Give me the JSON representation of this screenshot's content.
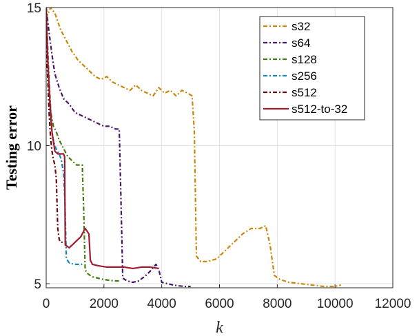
{
  "chart_data": {
    "type": "line",
    "title": "",
    "xlabel": "k",
    "ylabel": "Testing error",
    "xlim": [
      0,
      12000
    ],
    "ylim": [
      4.85,
      15
    ],
    "xticks": [
      0,
      2000,
      4000,
      6000,
      8000,
      10000,
      12000
    ],
    "xtick_labels": [
      "0",
      "2000",
      "4000",
      "6000",
      "8000",
      "10000",
      "12000"
    ],
    "yticks": [
      5,
      10,
      15
    ],
    "ytick_labels": [
      "5",
      "10",
      "15"
    ],
    "grid": true,
    "legend_position": "top-right",
    "series": [
      {
        "name": "s32",
        "color": "#c8870a",
        "dash": "6,3,2,3",
        "x": [
          0,
          150,
          300,
          500,
          700,
          900,
          1100,
          1300,
          1500,
          1700,
          1900,
          2100,
          2300,
          2500,
          2700,
          2900,
          3100,
          3300,
          3500,
          3700,
          3900,
          4100,
          4300,
          4500,
          4700,
          4900,
          5050,
          5130,
          5200,
          5350,
          5600,
          5900,
          6200,
          6500,
          6800,
          7100,
          7400,
          7600,
          7750,
          7900,
          8100,
          8400,
          8800,
          9200,
          9600,
          10000,
          10200
        ],
        "y": [
          14.6,
          15,
          14.8,
          14.2,
          13.8,
          13.4,
          13.1,
          12.9,
          12.7,
          12.5,
          12.4,
          12.5,
          12.3,
          12.2,
          12.1,
          12.0,
          12.2,
          12.0,
          11.9,
          11.8,
          12.1,
          11.9,
          12.0,
          11.8,
          12.0,
          11.9,
          11.8,
          10.5,
          6.0,
          5.8,
          5.8,
          5.9,
          6.2,
          6.5,
          6.8,
          7.0,
          7.0,
          7.1,
          6.4,
          5.3,
          5.15,
          5.05,
          5.0,
          4.95,
          4.9,
          4.9,
          4.95
        ]
      },
      {
        "name": "s64",
        "color": "#4a1468",
        "dash": "6,3,2,3",
        "x": [
          0,
          100,
          200,
          300,
          450,
          600,
          800,
          1000,
          1200,
          1400,
          1600,
          1800,
          2000,
          2200,
          2400,
          2530,
          2580,
          2650,
          2800,
          3000,
          3200,
          3400,
          3600,
          3800,
          3900,
          4000,
          4200,
          4400,
          4600,
          4800,
          5000
        ],
        "y": [
          15,
          14.1,
          13.3,
          12.6,
          12.1,
          11.7,
          11.5,
          11.2,
          11.1,
          11.0,
          10.9,
          10.8,
          10.7,
          10.7,
          10.6,
          10.6,
          8.5,
          5.2,
          5.1,
          5.05,
          5.1,
          5.25,
          5.45,
          5.7,
          5.5,
          5.05,
          5.0,
          4.95,
          4.92,
          4.9,
          4.9
        ]
      },
      {
        "name": "s128",
        "color": "#3e7a0c",
        "dash": "6,3,2,3",
        "x": [
          0,
          80,
          160,
          250,
          350,
          450,
          550,
          650,
          750,
          850,
          950,
          1050,
          1150,
          1250,
          1300,
          1350,
          1450,
          1600,
          1800,
          2000,
          2200,
          2400,
          2550
        ],
        "y": [
          15,
          12.8,
          11.2,
          10.7,
          10.5,
          10.2,
          10.0,
          9.8,
          9.6,
          9.5,
          9.4,
          9.3,
          9.3,
          9.3,
          7.6,
          5.5,
          5.35,
          5.25,
          5.2,
          5.15,
          5.12,
          5.1,
          5.1
        ]
      },
      {
        "name": "s256",
        "color": "#1b86b8",
        "dash": "6,3,2,3",
        "x": [
          0,
          80,
          150,
          230,
          300,
          380,
          450,
          520,
          600,
          650,
          700,
          800,
          900,
          1000,
          1100,
          1200,
          1250
        ],
        "y": [
          14.5,
          12.5,
          11.0,
          10.3,
          10.0,
          9.8,
          9.7,
          9.5,
          9.0,
          8.0,
          5.9,
          5.75,
          5.72,
          5.7,
          5.7,
          5.7,
          5.7
        ]
      },
      {
        "name": "s512",
        "color": "#6a0a0a",
        "dash": "6,3,2,3",
        "x": [
          0,
          50,
          100,
          150,
          200,
          250,
          300,
          350,
          400,
          450,
          500,
          550,
          600,
          640
        ],
        "y": [
          14.0,
          12.5,
          11.2,
          10.3,
          9.8,
          9.5,
          9.3,
          8.8,
          7.0,
          6.6,
          6.5,
          6.5,
          6.5,
          6.5
        ]
      },
      {
        "name": "s512-to-32",
        "color": "#a01a30",
        "dash": "",
        "x": [
          0,
          60,
          120,
          200,
          300,
          400,
          500,
          600,
          640,
          660,
          800,
          1000,
          1200,
          1350,
          1480,
          1530,
          1600,
          1800,
          2100,
          2400,
          2700,
          3000,
          3300,
          3600,
          3900
        ],
        "y": [
          15,
          13.0,
          11.8,
          10.5,
          9.8,
          9.7,
          9.7,
          9.7,
          9.6,
          6.4,
          6.3,
          6.5,
          6.7,
          7.0,
          6.8,
          5.85,
          5.7,
          5.65,
          5.6,
          5.6,
          5.6,
          5.55,
          5.6,
          5.6,
          5.55
        ]
      }
    ]
  }
}
